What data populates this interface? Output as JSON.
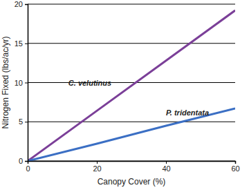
{
  "chart_data": {
    "type": "line",
    "x_label": "Canopy Cover (%)",
    "y_label": "Nitrogen Fixed (lbs/ac/yr)",
    "x": [
      0,
      20,
      40,
      60
    ],
    "series": [
      {
        "name": "C. velutinus",
        "color": "#7b3f98",
        "values": [
          0,
          6.4,
          12.8,
          19.2
        ]
      },
      {
        "name": "P. tridentata",
        "color": "#3b6fc4",
        "values": [
          0,
          2.2,
          4.5,
          6.7
        ]
      }
    ],
    "xlim": [
      0,
      60
    ],
    "xticks": [
      0,
      20,
      40,
      60
    ],
    "ylim": [
      0,
      20
    ],
    "yticks": [
      0,
      5,
      10,
      15,
      20
    ],
    "grid": true
  }
}
